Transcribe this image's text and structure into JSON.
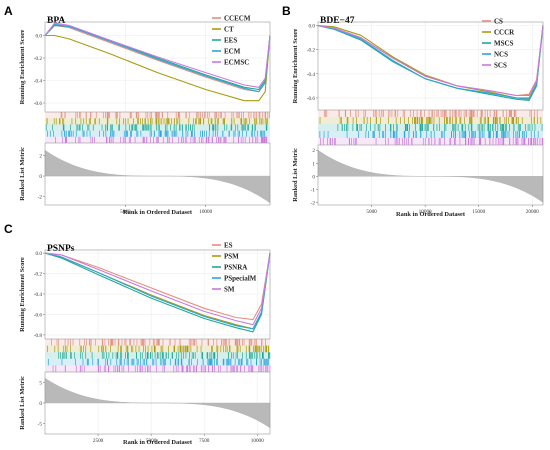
{
  "figure": {
    "panel_letters": [
      "A",
      "B",
      "C"
    ]
  },
  "chart_data": [
    {
      "type": "line",
      "panel": "A",
      "title": "BPA",
      "ylabel_top": "Running Enrichment Score",
      "ylabel_bottom": "Ranked List Metric",
      "xlabel": "Rank in Ordered Dataset",
      "n_genes": 14000,
      "x_ticks": [
        5000,
        10000
      ],
      "y_ticks_top": [
        0.0,
        -0.2,
        -0.4,
        -0.6
      ],
      "ylim_top": [
        -0.68,
        0.12
      ],
      "y_ticks_bottom": [
        2,
        0,
        -2
      ],
      "ylim_bottom": [
        -2.8,
        3.2
      ],
      "metric_range": [
        2.5,
        -2.6
      ],
      "series": [
        {
          "name": "CCECM",
          "color": "#e3907e",
          "points": [
            [
              0,
              0.0
            ],
            [
              600,
              0.09
            ],
            [
              1500,
              0.07
            ],
            [
              4000,
              -0.06
            ],
            [
              7000,
              -0.22
            ],
            [
              10000,
              -0.37
            ],
            [
              12400,
              -0.48
            ],
            [
              13300,
              -0.5
            ],
            [
              13700,
              -0.42
            ],
            [
              14000,
              0.0
            ]
          ]
        },
        {
          "name": "CT",
          "color": "#a99b12",
          "points": [
            [
              0,
              0.0
            ],
            [
              600,
              0.0
            ],
            [
              1500,
              -0.03
            ],
            [
              4000,
              -0.16
            ],
            [
              7000,
              -0.33
            ],
            [
              10000,
              -0.48
            ],
            [
              12400,
              -0.58
            ],
            [
              13300,
              -0.58
            ],
            [
              13700,
              -0.5
            ],
            [
              14000,
              0.0
            ]
          ]
        },
        {
          "name": "EES",
          "color": "#22a894",
          "points": [
            [
              0,
              0.0
            ],
            [
              600,
              0.09
            ],
            [
              1500,
              0.08
            ],
            [
              4000,
              -0.04
            ],
            [
              7000,
              -0.2
            ],
            [
              10000,
              -0.35
            ],
            [
              12400,
              -0.46
            ],
            [
              13300,
              -0.48
            ],
            [
              13700,
              -0.4
            ],
            [
              14000,
              0.0
            ]
          ]
        },
        {
          "name": "ECM",
          "color": "#2ca5d8",
          "points": [
            [
              0,
              0.0
            ],
            [
              600,
              0.1
            ],
            [
              1500,
              0.08
            ],
            [
              4000,
              -0.05
            ],
            [
              7000,
              -0.21
            ],
            [
              10000,
              -0.36
            ],
            [
              12400,
              -0.47
            ],
            [
              13300,
              -0.5
            ],
            [
              13700,
              -0.42
            ],
            [
              14000,
              0.0
            ]
          ]
        },
        {
          "name": "ECMSC",
          "color": "#cc78e0",
          "points": [
            [
              0,
              0.0
            ],
            [
              600,
              0.11
            ],
            [
              1500,
              0.09
            ],
            [
              4000,
              -0.04
            ],
            [
              7000,
              -0.19
            ],
            [
              10000,
              -0.33
            ],
            [
              12400,
              -0.44
            ],
            [
              13300,
              -0.46
            ],
            [
              13700,
              -0.38
            ],
            [
              14000,
              0.0
            ]
          ]
        }
      ]
    },
    {
      "type": "line",
      "panel": "B",
      "title": "BDE−47",
      "ylabel_top": "Running Enrichment Score",
      "ylabel_bottom": "Ranked List Metric",
      "xlabel": "Rank in Ordered Dataset",
      "n_genes": 21000,
      "x_ticks": [
        5000,
        10000,
        15000,
        20000
      ],
      "y_ticks_top": [
        0.0,
        -0.2,
        -0.4,
        -0.6
      ],
      "ylim_top": [
        -0.7,
        0.03
      ],
      "y_ticks_bottom": [
        2,
        1,
        0,
        -1,
        -2
      ],
      "ylim_bottom": [
        -2.2,
        2.4
      ],
      "metric_range": [
        2.0,
        -2.0
      ],
      "series": [
        {
          "name": "CS",
          "color": "#e3907e",
          "points": [
            [
              0,
              0.0
            ],
            [
              1500,
              -0.02
            ],
            [
              4000,
              -0.1
            ],
            [
              7000,
              -0.27
            ],
            [
              10000,
              -0.42
            ],
            [
              13000,
              -0.5
            ],
            [
              16000,
              -0.54
            ],
            [
              18500,
              -0.58
            ],
            [
              19700,
              -0.57
            ],
            [
              20400,
              -0.45
            ],
            [
              21000,
              0.0
            ]
          ]
        },
        {
          "name": "CCCR",
          "color": "#a99b12",
          "points": [
            [
              0,
              0.0
            ],
            [
              1500,
              -0.01
            ],
            [
              4000,
              -0.08
            ],
            [
              7000,
              -0.26
            ],
            [
              10000,
              -0.41
            ],
            [
              13000,
              -0.5
            ],
            [
              16000,
              -0.55
            ],
            [
              18500,
              -0.6
            ],
            [
              19700,
              -0.6
            ],
            [
              20400,
              -0.48
            ],
            [
              21000,
              0.0
            ]
          ]
        },
        {
          "name": "MSCS",
          "color": "#22a894",
          "points": [
            [
              0,
              0.0
            ],
            [
              1500,
              -0.03
            ],
            [
              4000,
              -0.12
            ],
            [
              7000,
              -0.3
            ],
            [
              10000,
              -0.44
            ],
            [
              13000,
              -0.52
            ],
            [
              16000,
              -0.57
            ],
            [
              18500,
              -0.61
            ],
            [
              19700,
              -0.62
            ],
            [
              20400,
              -0.5
            ],
            [
              21000,
              0.0
            ]
          ]
        },
        {
          "name": "NCS",
          "color": "#2ca5d8",
          "points": [
            [
              0,
              0.0
            ],
            [
              1500,
              -0.03
            ],
            [
              4000,
              -0.11
            ],
            [
              7000,
              -0.29
            ],
            [
              10000,
              -0.44
            ],
            [
              13000,
              -0.52
            ],
            [
              16000,
              -0.56
            ],
            [
              18500,
              -0.6
            ],
            [
              19700,
              -0.61
            ],
            [
              20400,
              -0.49
            ],
            [
              21000,
              0.0
            ]
          ]
        },
        {
          "name": "SCS",
          "color": "#cc78e0",
          "points": [
            [
              0,
              0.0
            ],
            [
              1500,
              -0.02
            ],
            [
              4000,
              -0.1
            ],
            [
              7000,
              -0.27
            ],
            [
              10000,
              -0.42
            ],
            [
              13000,
              -0.5
            ],
            [
              16000,
              -0.54
            ],
            [
              18500,
              -0.58
            ],
            [
              19700,
              -0.58
            ],
            [
              20400,
              -0.46
            ],
            [
              21000,
              0.0
            ]
          ]
        }
      ]
    },
    {
      "type": "line",
      "panel": "C",
      "title": "PSNPs",
      "ylabel_top": "Running Enrichment Score",
      "ylabel_bottom": "Ranked List Metric",
      "xlabel": "Rank in Ordered Dataset",
      "n_genes": 10600,
      "x_ticks": [
        2500,
        5000,
        7500,
        10000
      ],
      "y_ticks_top": [
        0.0,
        -0.2,
        -0.4,
        -0.6,
        -0.8
      ],
      "ylim_top": [
        -0.84,
        0.03
      ],
      "y_ticks_bottom": [
        5,
        0,
        -5
      ],
      "ylim_bottom": [
        -7.5,
        7.5
      ],
      "metric_range": [
        6.0,
        -6.0
      ],
      "series": [
        {
          "name": "ES",
          "color": "#e3907e",
          "points": [
            [
              0,
              0.0
            ],
            [
              800,
              -0.02
            ],
            [
              2500,
              -0.14
            ],
            [
              5000,
              -0.34
            ],
            [
              7500,
              -0.54
            ],
            [
              9000,
              -0.63
            ],
            [
              9800,
              -0.65
            ],
            [
              10200,
              -0.5
            ],
            [
              10600,
              0.0
            ]
          ]
        },
        {
          "name": "PSM",
          "color": "#a99b12",
          "points": [
            [
              0,
              0.0
            ],
            [
              800,
              -0.04
            ],
            [
              2500,
              -0.19
            ],
            [
              5000,
              -0.41
            ],
            [
              7500,
              -0.61
            ],
            [
              9000,
              -0.7
            ],
            [
              9800,
              -0.74
            ],
            [
              10200,
              -0.58
            ],
            [
              10600,
              0.0
            ]
          ]
        },
        {
          "name": "PSNRA",
          "color": "#22a894",
          "points": [
            [
              0,
              0.0
            ],
            [
              800,
              -0.05
            ],
            [
              2500,
              -0.21
            ],
            [
              5000,
              -0.44
            ],
            [
              7500,
              -0.64
            ],
            [
              9000,
              -0.73
            ],
            [
              9800,
              -0.77
            ],
            [
              10200,
              -0.6
            ],
            [
              10600,
              0.0
            ]
          ]
        },
        {
          "name": "PSpecialM",
          "color": "#2ca5d8",
          "points": [
            [
              0,
              0.0
            ],
            [
              800,
              -0.04
            ],
            [
              2500,
              -0.19
            ],
            [
              5000,
              -0.42
            ],
            [
              7500,
              -0.62
            ],
            [
              9000,
              -0.71
            ],
            [
              9800,
              -0.74
            ],
            [
              10200,
              -0.58
            ],
            [
              10600,
              0.0
            ]
          ]
        },
        {
          "name": "SM",
          "color": "#cc78e0",
          "points": [
            [
              0,
              0.0
            ],
            [
              800,
              -0.02
            ],
            [
              2500,
              -0.16
            ],
            [
              5000,
              -0.37
            ],
            [
              7500,
              -0.57
            ],
            [
              9000,
              -0.66
            ],
            [
              9800,
              -0.7
            ],
            [
              10200,
              -0.54
            ],
            [
              10600,
              0.0
            ]
          ]
        }
      ]
    }
  ]
}
